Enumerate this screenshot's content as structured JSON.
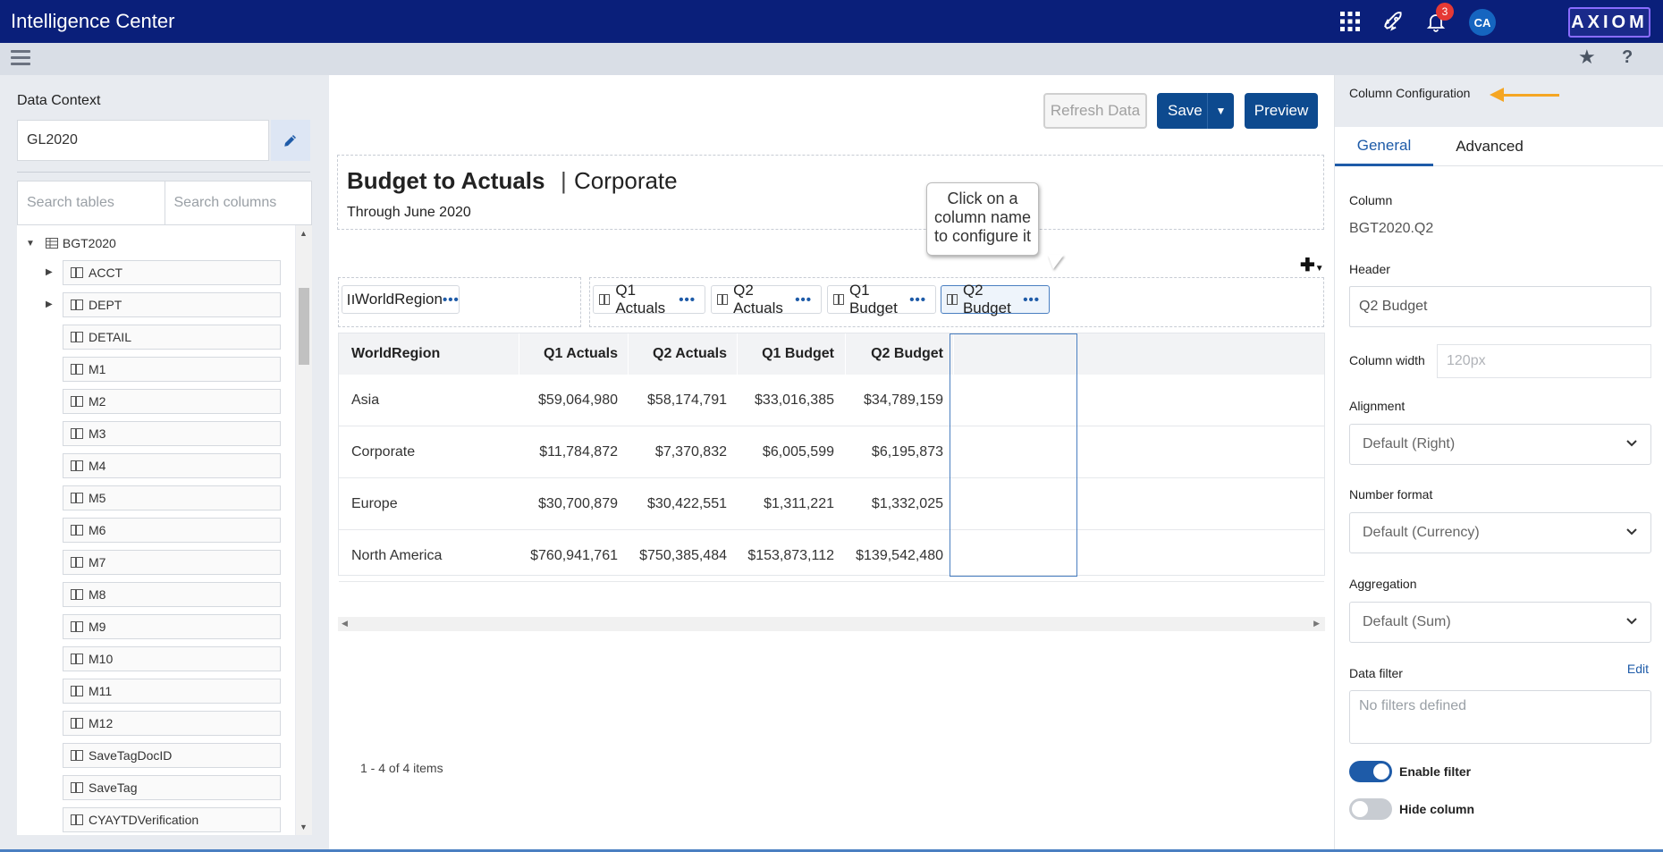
{
  "topbar": {
    "app_title": "Intelligence Center",
    "notification_count": "3",
    "avatar_initials": "CA",
    "logo_text": "AXIOM",
    "brand_color": "#0a1f7a"
  },
  "left_panel": {
    "data_context_label": "Data Context",
    "data_context_value": "GL2020",
    "search_tables_placeholder": "Search tables",
    "search_columns_placeholder": "Search columns",
    "tree_root": "BGT2020",
    "tree_items": [
      {
        "label": "ACCT",
        "expandable": true
      },
      {
        "label": "DEPT",
        "expandable": true
      },
      {
        "label": "DETAIL",
        "expandable": false
      },
      {
        "label": "M1",
        "expandable": false
      },
      {
        "label": "M2",
        "expandable": false
      },
      {
        "label": "M3",
        "expandable": false
      },
      {
        "label": "M4",
        "expandable": false
      },
      {
        "label": "M5",
        "expandable": false
      },
      {
        "label": "M6",
        "expandable": false
      },
      {
        "label": "M7",
        "expandable": false
      },
      {
        "label": "M8",
        "expandable": false
      },
      {
        "label": "M9",
        "expandable": false
      },
      {
        "label": "M10",
        "expandable": false
      },
      {
        "label": "M11",
        "expandable": false
      },
      {
        "label": "M12",
        "expandable": false
      },
      {
        "label": "SaveTagDocID",
        "expandable": false
      },
      {
        "label": "SaveTag",
        "expandable": false
      },
      {
        "label": "CYAYTDVerification",
        "expandable": false
      }
    ]
  },
  "toolbar": {
    "refresh_label": "Refresh Data",
    "save_label": "Save",
    "preview_label": "Preview"
  },
  "report": {
    "title": "Budget to Actuals",
    "separator": "|",
    "subtitle": "Corporate",
    "through": "Through June 2020",
    "callout": "Click on a column name to configure it"
  },
  "column_chips": {
    "group": [
      "WorldRegion"
    ],
    "values": [
      "Q1 Actuals",
      "Q2 Actuals",
      "Q1 Budget",
      "Q2 Budget"
    ],
    "selected": "Q2 Budget"
  },
  "grid": {
    "headers": [
      "WorldRegion",
      "Q1 Actuals",
      "Q2 Actuals",
      "Q1 Budget",
      "Q2 Budget"
    ],
    "rows": [
      [
        "Asia",
        "$59,064,980",
        "$58,174,791",
        "$33,016,385",
        "$34,789,159"
      ],
      [
        "Corporate",
        "$11,784,872",
        "$7,370,832",
        "$6,005,599",
        "$6,195,873"
      ],
      [
        "Europe",
        "$30,700,879",
        "$30,422,551",
        "$1,311,221",
        "$1,332,025"
      ],
      [
        "North America",
        "$760,941,761",
        "$750,385,484",
        "$153,873,112",
        "$139,542,480"
      ]
    ],
    "pager": "1 - 4 of 4 items"
  },
  "right_panel": {
    "title": "Column Configuration",
    "tabs": [
      "General",
      "Advanced"
    ],
    "column_label": "Column",
    "column_value": "BGT2020.Q2",
    "header_label": "Header",
    "header_value": "Q2 Budget",
    "width_label": "Column width",
    "width_placeholder": "120px",
    "alignment_label": "Alignment",
    "alignment_value": "Default (Right)",
    "number_format_label": "Number format",
    "number_format_value": "Default (Currency)",
    "aggregation_label": "Aggregation",
    "aggregation_value": "Default (Sum)",
    "data_filter_label": "Data filter",
    "data_filter_edit": "Edit",
    "data_filter_placeholder": "No filters defined",
    "enable_filter_label": "Enable filter",
    "enable_filter_on": true,
    "hide_column_label": "Hide column",
    "hide_column_on": false,
    "accent_color": "#1e5ba8",
    "arrow_color": "#f5a623"
  }
}
